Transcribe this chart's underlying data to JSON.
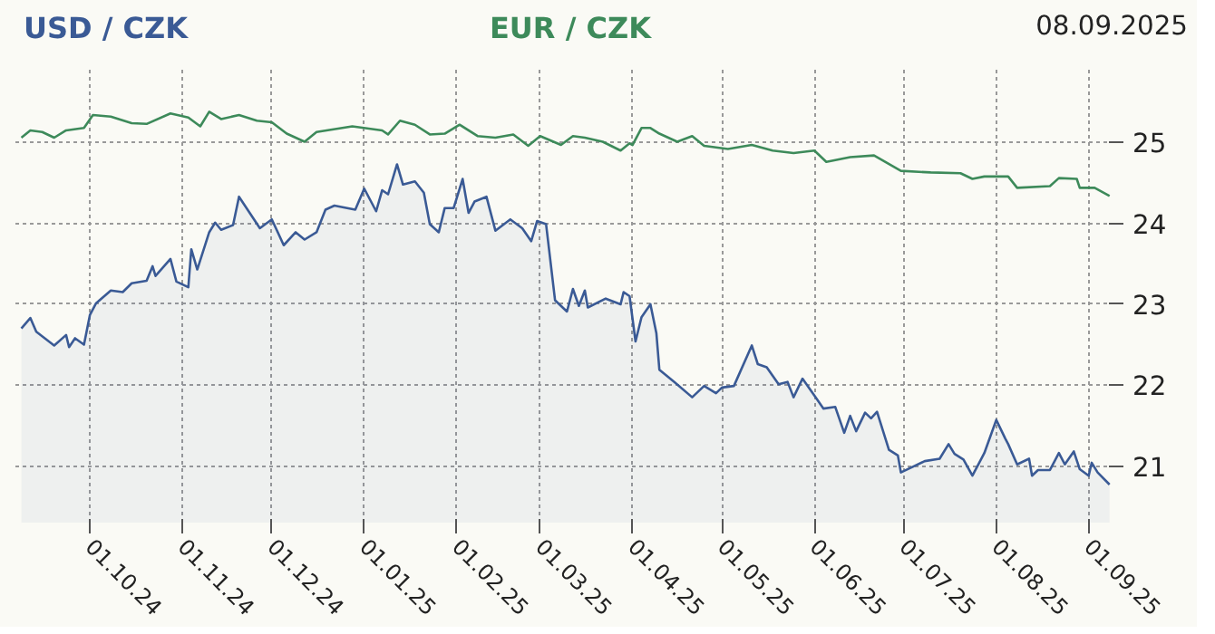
{
  "chart_data": {
    "type": "line",
    "title": "08.09.2025",
    "xlim": [
      "2024-09-06",
      "2025-09-09"
    ],
    "ylim": [
      20.3,
      25.9
    ],
    "xticks": [
      {
        "value": "2024-10-01",
        "label": "01.10.24"
      },
      {
        "value": "2024-11-01",
        "label": "01.11.24"
      },
      {
        "value": "2024-12-01",
        "label": "01.12.24"
      },
      {
        "value": "2025-01-01",
        "label": "01.01.25"
      },
      {
        "value": "2025-02-01",
        "label": "01.02.25"
      },
      {
        "value": "2025-03-01",
        "label": "01.03.25"
      },
      {
        "value": "2025-04-01",
        "label": "01.04.25"
      },
      {
        "value": "2025-05-01",
        "label": "01.05.25"
      },
      {
        "value": "2025-06-01",
        "label": "01.06.25"
      },
      {
        "value": "2025-07-01",
        "label": "01.07.25"
      },
      {
        "value": "2025-08-01",
        "label": "01.08.25"
      },
      {
        "value": "2025-09-01",
        "label": "01.09.25"
      }
    ],
    "yticks": [
      21,
      22,
      23,
      24,
      25
    ],
    "grid": true,
    "marker": "none",
    "line_style": "solid",
    "series": [
      {
        "name": "USD / CZK",
        "type": "area",
        "color": "#3a5a95",
        "x": [
          "2024-09-08",
          "2024-09-11",
          "2024-09-13",
          "2024-09-19",
          "2024-09-23",
          "2024-09-24",
          "2024-09-26",
          "2024-09-29",
          "2024-10-01",
          "2024-10-03",
          "2024-10-08",
          "2024-10-12",
          "2024-10-15",
          "2024-10-20",
          "2024-10-22",
          "2024-10-23",
          "2024-10-28",
          "2024-10-30",
          "2024-11-03",
          "2024-11-04",
          "2024-11-06",
          "2024-11-10",
          "2024-11-12",
          "2024-11-14",
          "2024-11-18",
          "2024-11-20",
          "2024-11-27",
          "2024-12-01",
          "2024-12-05",
          "2024-12-09",
          "2024-12-12",
          "2024-12-16",
          "2024-12-19",
          "2024-12-22",
          "2024-12-29",
          "2025-01-01",
          "2025-01-05",
          "2025-01-07",
          "2025-01-09",
          "2025-01-12",
          "2025-01-14",
          "2025-01-18",
          "2025-01-21",
          "2025-01-23",
          "2025-01-26",
          "2025-01-28",
          "2025-01-31",
          "2025-02-03",
          "2025-02-05",
          "2025-02-07",
          "2025-02-11",
          "2025-02-14",
          "2025-02-19",
          "2025-02-23",
          "2025-02-26",
          "2025-02-28",
          "2025-03-03",
          "2025-03-06",
          "2025-03-10",
          "2025-03-12",
          "2025-03-14",
          "2025-03-16",
          "2025-03-17",
          "2025-03-23",
          "2025-03-28",
          "2025-03-29",
          "2025-03-31",
          "2025-04-02",
          "2025-04-04",
          "2025-04-07",
          "2025-04-09",
          "2025-04-10",
          "2025-04-15",
          "2025-04-21",
          "2025-04-25",
          "2025-04-29",
          "2025-05-01",
          "2025-05-05",
          "2025-05-11",
          "2025-05-13",
          "2025-05-16",
          "2025-05-20",
          "2025-05-23",
          "2025-05-25",
          "2025-05-28",
          "2025-06-01",
          "2025-06-04",
          "2025-06-08",
          "2025-06-11",
          "2025-06-13",
          "2025-06-15",
          "2025-06-18",
          "2025-06-20",
          "2025-06-22",
          "2025-06-26",
          "2025-06-29",
          "2025-06-30",
          "2025-07-04",
          "2025-07-08",
          "2025-07-13",
          "2025-07-16",
          "2025-07-18",
          "2025-07-21",
          "2025-07-24",
          "2025-07-28",
          "2025-08-01",
          "2025-08-04",
          "2025-08-05",
          "2025-08-08",
          "2025-08-12",
          "2025-08-13",
          "2025-08-15",
          "2025-08-19",
          "2025-08-22",
          "2025-08-24",
          "2025-08-27",
          "2025-08-29",
          "2025-09-01",
          "2025-09-02",
          "2025-09-04",
          "2025-09-08"
        ],
        "values": [
          22.7,
          22.83,
          22.66,
          22.49,
          22.62,
          22.47,
          22.58,
          22.5,
          22.87,
          23.01,
          23.17,
          23.15,
          23.26,
          23.29,
          23.47,
          23.35,
          23.56,
          23.28,
          23.21,
          23.68,
          23.43,
          23.89,
          24.01,
          23.92,
          23.98,
          24.33,
          23.94,
          24.05,
          23.73,
          23.89,
          23.8,
          23.89,
          24.17,
          24.22,
          24.17,
          24.43,
          24.15,
          24.41,
          24.36,
          24.73,
          24.48,
          24.52,
          24.38,
          23.99,
          23.89,
          24.19,
          24.19,
          24.55,
          24.13,
          24.27,
          24.33,
          23.91,
          24.05,
          23.94,
          23.78,
          24.03,
          23.99,
          23.05,
          22.91,
          23.19,
          22.98,
          23.17,
          22.96,
          23.07,
          23.0,
          23.15,
          23.1,
          22.54,
          22.84,
          23.0,
          22.64,
          22.19,
          22.04,
          21.85,
          21.99,
          21.9,
          21.97,
          21.99,
          22.49,
          22.26,
          22.22,
          22.01,
          22.04,
          21.85,
          22.08,
          21.87,
          21.71,
          21.73,
          21.41,
          21.62,
          21.43,
          21.66,
          21.59,
          21.67,
          21.2,
          21.13,
          20.92,
          20.99,
          21.06,
          21.09,
          21.27,
          21.15,
          21.08,
          20.88,
          21.16,
          21.57,
          21.34,
          21.27,
          21.02,
          21.09,
          20.88,
          20.95,
          20.95,
          21.16,
          21.02,
          21.18,
          20.96,
          20.88,
          21.04,
          20.92,
          20.77
        ]
      },
      {
        "name": "EUR / CZK",
        "color": "#3d8a5a",
        "x": [
          "2024-09-08",
          "2024-09-11",
          "2024-09-15",
          "2024-09-19",
          "2024-09-23",
          "2024-09-29",
          "2024-10-02",
          "2024-10-08",
          "2024-10-15",
          "2024-10-20",
          "2024-10-28",
          "2024-11-03",
          "2024-11-07",
          "2024-11-10",
          "2024-11-14",
          "2024-11-20",
          "2024-11-26",
          "2024-12-01",
          "2024-12-06",
          "2024-12-12",
          "2024-12-16",
          "2024-12-28",
          "2025-01-07",
          "2025-01-09",
          "2025-01-13",
          "2025-01-18",
          "2025-01-23",
          "2025-01-28",
          "2025-02-02",
          "2025-02-08",
          "2025-02-14",
          "2025-02-20",
          "2025-02-25",
          "2025-03-01",
          "2025-03-08",
          "2025-03-12",
          "2025-03-16",
          "2025-03-22",
          "2025-03-28",
          "2025-03-31",
          "2025-04-01",
          "2025-04-04",
          "2025-04-07",
          "2025-04-10",
          "2025-04-16",
          "2025-04-21",
          "2025-04-25",
          "2025-05-03",
          "2025-05-11",
          "2025-05-18",
          "2025-05-25",
          "2025-06-01",
          "2025-06-05",
          "2025-06-13",
          "2025-06-21",
          "2025-06-30",
          "2025-07-10",
          "2025-07-20",
          "2025-07-24",
          "2025-07-28",
          "2025-08-05",
          "2025-08-08",
          "2025-08-19",
          "2025-08-22",
          "2025-08-28",
          "2025-08-29",
          "2025-09-03",
          "2025-09-08"
        ],
        "values": [
          25.06,
          25.15,
          25.13,
          25.06,
          25.15,
          25.18,
          25.34,
          25.32,
          25.24,
          25.23,
          25.36,
          25.31,
          25.2,
          25.38,
          25.29,
          25.34,
          25.27,
          25.25,
          25.11,
          25.01,
          25.13,
          25.2,
          25.15,
          25.1,
          25.27,
          25.22,
          25.1,
          25.11,
          25.22,
          25.08,
          25.06,
          25.1,
          24.96,
          25.08,
          24.97,
          25.08,
          25.06,
          25.01,
          24.9,
          24.99,
          24.97,
          25.18,
          25.18,
          25.11,
          25.01,
          25.08,
          24.96,
          24.92,
          24.97,
          24.9,
          24.87,
          24.9,
          24.76,
          24.82,
          24.84,
          24.65,
          24.63,
          24.62,
          24.55,
          24.58,
          24.58,
          24.44,
          24.46,
          24.56,
          24.55,
          24.44,
          24.44,
          24.34
        ]
      }
    ]
  }
}
